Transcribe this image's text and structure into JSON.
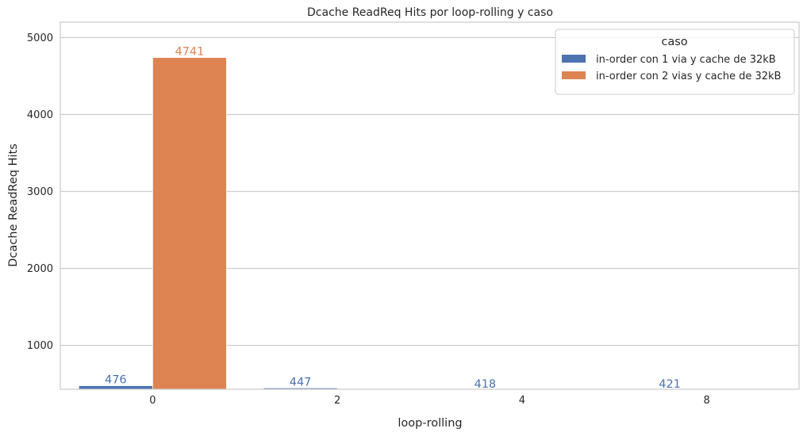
{
  "chart_data": {
    "type": "bar",
    "title": "Dcache ReadReq Hits por loop-rolling y caso",
    "xlabel": "loop-rolling",
    "ylabel": "Dcache ReadReq Hits",
    "categories": [
      "0",
      "2",
      "4",
      "8"
    ],
    "ylim": [
      430,
      5200
    ],
    "yticks": [
      1000,
      2000,
      3000,
      4000,
      5000
    ],
    "grid": true,
    "legend": {
      "title": "caso",
      "placement": "top-right"
    },
    "series": [
      {
        "name": "in-order con 1 via y cache de 32kB",
        "values": [
          476,
          447,
          418,
          421
        ],
        "color": "#4c72b0"
      },
      {
        "name": "in-order con 2 vias y cache de 32kB",
        "values": [
          4741,
          null,
          null,
          null
        ],
        "color": "#dd8452"
      }
    ]
  }
}
